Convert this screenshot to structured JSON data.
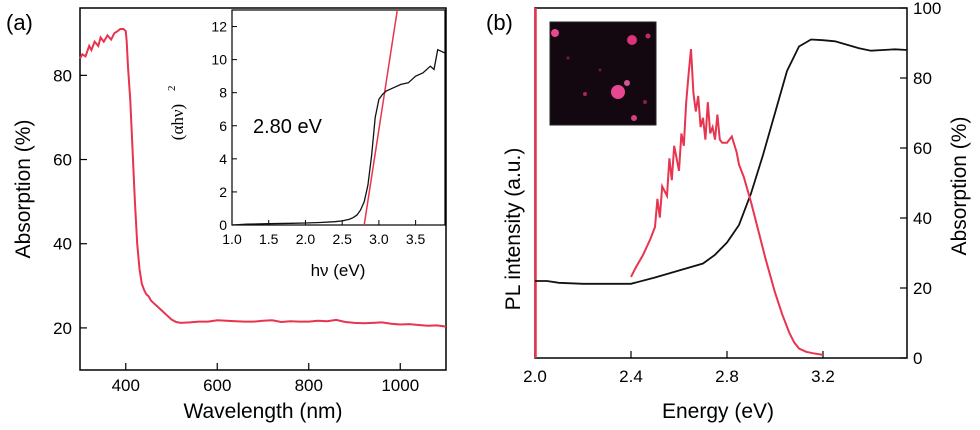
{
  "colors": {
    "pl": "#e8344e",
    "absorption_b": "#111111",
    "fit_line": "#e8344e",
    "axes": "#000000"
  },
  "chart_data": [
    {
      "panel": "(a)",
      "type": "line",
      "xlabel": "Wavelength (nm)",
      "ylabel": "Absorption (%)",
      "xlim": [
        300,
        1100
      ],
      "ylim": [
        10,
        96
      ],
      "xticks": [
        400,
        600,
        800,
        1000
      ],
      "yticks": [
        20,
        40,
        60,
        80
      ],
      "series": [
        {
          "color": "#e8344e",
          "x": [
            300,
            305,
            312,
            320,
            325,
            332,
            340,
            345,
            352,
            360,
            368,
            375,
            382,
            388,
            395,
            400,
            402,
            405,
            410,
            415,
            420,
            425,
            430,
            435,
            440,
            445,
            450,
            455,
            460,
            470,
            480,
            490,
            500,
            510,
            520,
            540,
            560,
            580,
            600,
            620,
            640,
            660,
            680,
            700,
            720,
            740,
            760,
            780,
            800,
            820,
            840,
            860,
            880,
            900,
            920,
            940,
            960,
            980,
            1000,
            1020,
            1040,
            1060,
            1080,
            1100
          ],
          "y": [
            84,
            85,
            84.5,
            87,
            86,
            88,
            87,
            89,
            88,
            89.5,
            88.5,
            90,
            90.5,
            91,
            91,
            90.5,
            88,
            82,
            74,
            62,
            50,
            40,
            34,
            30.5,
            29,
            28,
            27.5,
            26.5,
            26,
            25,
            24,
            23,
            22,
            21.4,
            21.2,
            21.3,
            21.5,
            21.5,
            21.8,
            21.7,
            21.6,
            21.5,
            21.5,
            21.7,
            21.8,
            21.4,
            21.6,
            21.5,
            21.5,
            21.7,
            21.6,
            21.9,
            21.4,
            21.2,
            21.1,
            21.2,
            21.3,
            21.0,
            20.8,
            20.9,
            20.7,
            20.5,
            20.6,
            20.3
          ]
        }
      ]
    },
    {
      "panel": "(a) inset",
      "type": "line",
      "xlabel": "hν (eV)",
      "ylabel": "(αhν)²",
      "xlim": [
        1.0,
        3.9
      ],
      "ylim": [
        0,
        13
      ],
      "xticks": [
        1.0,
        1.5,
        2.0,
        2.5,
        3.0,
        3.5
      ],
      "yticks": [
        0,
        2,
        4,
        6,
        8,
        10,
        12
      ],
      "annotation": "2.80 eV",
      "series": [
        {
          "color": "#111111",
          "x": [
            1.0,
            1.2,
            1.5,
            1.8,
            2.0,
            2.2,
            2.4,
            2.5,
            2.6,
            2.65,
            2.7,
            2.75,
            2.8,
            2.85,
            2.9,
            2.95,
            3.0,
            3.05,
            3.1,
            3.2,
            3.3,
            3.4,
            3.5,
            3.6,
            3.7,
            3.75,
            3.8,
            3.85,
            3.9
          ],
          "y": [
            0,
            0.05,
            0.08,
            0.1,
            0.12,
            0.15,
            0.2,
            0.25,
            0.35,
            0.45,
            0.6,
            0.9,
            1.4,
            2.4,
            4.2,
            6.5,
            7.6,
            7.9,
            8.1,
            8.3,
            8.5,
            8.6,
            9.0,
            9.2,
            9.6,
            9.4,
            10.6,
            10.5,
            10.4
          ]
        },
        {
          "color": "#e8344e",
          "x": [
            2.8,
            3.25
          ],
          "y": [
            0,
            13
          ]
        }
      ]
    },
    {
      "panel": "(b)",
      "type": "line",
      "xlabel": "Energy (eV)",
      "ylabel": "PL intensity (a.u.)",
      "ylabel_right": "Absorption (%)",
      "xlim": [
        2.0,
        3.55
      ],
      "ylim_right": [
        0,
        100
      ],
      "xticks": [
        2.0,
        2.4,
        2.8,
        3.2
      ],
      "yticks_right": [
        0,
        20,
        40,
        60,
        80,
        100
      ],
      "series": [
        {
          "axis": "right",
          "color": "#111111",
          "x": [
            2.0,
            2.05,
            2.1,
            2.2,
            2.3,
            2.4,
            2.5,
            2.6,
            2.7,
            2.75,
            2.8,
            2.85,
            2.9,
            2.95,
            3.0,
            3.05,
            3.1,
            3.15,
            3.2,
            3.25,
            3.3,
            3.35,
            3.4,
            3.45,
            3.5,
            3.55
          ],
          "y": [
            22,
            22,
            21.5,
            21.2,
            21.2,
            21.2,
            23,
            25,
            27,
            29.5,
            33,
            38,
            47,
            58,
            70,
            82,
            89,
            91,
            90.8,
            90.5,
            89.5,
            88.5,
            87.8,
            88,
            88.2,
            88
          ]
        },
        {
          "axis": "left",
          "color": "#e8344e",
          "relative": true,
          "x": [
            2.4,
            2.42,
            2.45,
            2.48,
            2.5,
            2.51,
            2.52,
            2.53,
            2.55,
            2.56,
            2.57,
            2.58,
            2.6,
            2.61,
            2.62,
            2.63,
            2.64,
            2.65,
            2.66,
            2.67,
            2.68,
            2.69,
            2.7,
            2.71,
            2.72,
            2.73,
            2.74,
            2.75,
            2.76,
            2.77,
            2.78,
            2.8,
            2.82,
            2.84,
            2.85,
            2.87,
            2.9,
            2.93,
            2.96,
            3.0,
            3.03,
            3.06,
            3.08,
            3.1,
            3.13,
            3.16,
            3.2
          ],
          "y": [
            0.26,
            0.29,
            0.33,
            0.38,
            0.42,
            0.51,
            0.45,
            0.55,
            0.52,
            0.64,
            0.57,
            0.68,
            0.6,
            0.72,
            0.68,
            0.82,
            0.91,
            0.99,
            0.85,
            0.79,
            0.84,
            0.74,
            0.77,
            0.7,
            0.82,
            0.72,
            0.74,
            0.7,
            0.78,
            0.7,
            0.69,
            0.69,
            0.71,
            0.66,
            0.62,
            0.58,
            0.5,
            0.41,
            0.32,
            0.21,
            0.14,
            0.08,
            0.05,
            0.03,
            0.02,
            0.015,
            0.01
          ]
        }
      ]
    }
  ],
  "labels": {
    "panel_a": "(a)",
    "panel_b": "(b)",
    "a_xlabel": "Wavelength (nm)",
    "a_ylabel": "Absorption (%)",
    "inset_xlabel": "hν (eV)",
    "inset_ylabel_base": "(αhν)",
    "inset_ylabel_sup": "2",
    "inset_annotation": "2.80 eV",
    "b_xlabel": "Energy (eV)",
    "b_ylabel_left": "PL intensity (a.u.)",
    "b_ylabel_right": "Absorption (%)"
  }
}
